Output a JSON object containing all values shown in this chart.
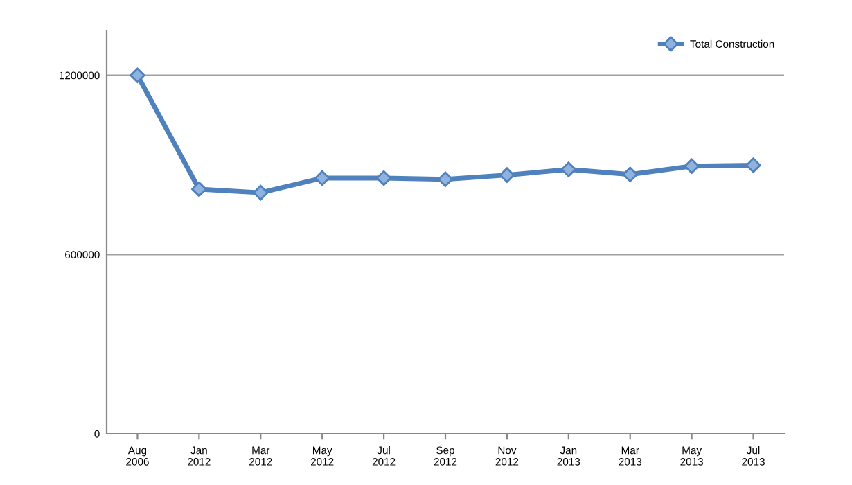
{
  "chart_data": {
    "type": "line",
    "categories": [
      "Aug\n2006",
      "Jan\n2012",
      "Mar\n2012",
      "May\n2012",
      "Jul\n2012",
      "Sep\n2012",
      "Nov\n2012",
      "Jan\n2013",
      "Mar\n2013",
      "May\n2013",
      "Jul\n2013"
    ],
    "series": [
      {
        "name": "Total Construction",
        "color": "#4f81bd",
        "values": [
          1200000,
          819000,
          807000,
          856000,
          856000,
          852000,
          866000,
          885000,
          868000,
          896000,
          899000
        ]
      }
    ],
    "ylim": [
      0,
      1350000
    ],
    "yticks": [
      0,
      600000,
      1200000
    ],
    "grid": "y",
    "legend": "top right",
    "marker": "diamond",
    "line_style": "solid"
  }
}
